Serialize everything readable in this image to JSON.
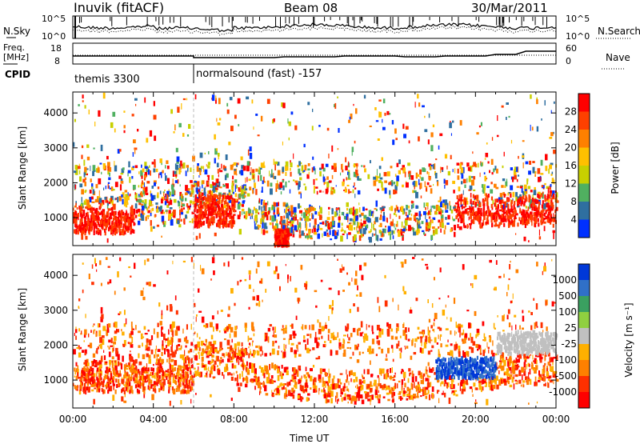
{
  "header": {
    "station": "Inuvik (fitACF)",
    "beam": "Beam 08",
    "date": "30/Mar/2011"
  },
  "top_panels": {
    "nsky_label": "N.Sky",
    "nsky_ticks": [
      "10^5",
      "10^0"
    ],
    "nsearch_label": "N.Search",
    "nsearch_ticks": [
      "10^5",
      "10^0"
    ],
    "freq_label_1": "Freq.",
    "freq_label_2": "[MHz]",
    "freq_ticks": [
      "18",
      "8"
    ],
    "nave_label": "Nave",
    "nave_ticks": [
      "60",
      "0"
    ],
    "cpid_label": "CPID",
    "cpid_segments": [
      {
        "label": "themis 3300",
        "start_hour": 0
      },
      {
        "label": "normalsound (fast) -157",
        "start_hour": 6
      }
    ]
  },
  "chart_data": [
    {
      "type": "heatmap",
      "title": "",
      "xlabel": "Time UT",
      "ylabel": "Slant Range [km]",
      "xlim_hours": [
        0,
        24
      ],
      "ylim": [
        200,
        4600
      ],
      "y_ticks": [
        1000,
        2000,
        3000,
        4000
      ],
      "colorbar_label": "Power [dB]",
      "colorbar_ticks": [
        "28",
        "24",
        "20",
        "16",
        "12",
        "8",
        "4"
      ],
      "colors": [
        "#ff0000",
        "#ff4000",
        "#ff8000",
        "#ffc000",
        "#c8d000",
        "#50b060",
        "#2f6fa0",
        "#0030ff"
      ],
      "bands": [
        {
          "start_hour": 0,
          "end_hour": 3,
          "lower_km": 600,
          "upper_km": 1200,
          "value": "strong"
        },
        {
          "start_hour": 6,
          "end_hour": 8,
          "lower_km": 800,
          "upper_km": 1700,
          "value": "strong"
        },
        {
          "start_hour": 10,
          "end_hour": 10.7,
          "lower_km": 250,
          "upper_km": 700,
          "value": "strong"
        },
        {
          "start_hour": 19,
          "end_hour": 24,
          "lower_km": 800,
          "upper_km": 1700,
          "value": "strong"
        }
      ]
    },
    {
      "type": "heatmap",
      "title": "",
      "xlabel": "Time UT",
      "ylabel": "Slant Range [km]",
      "xlim_hours": [
        0,
        24
      ],
      "ylim": [
        200,
        4600
      ],
      "y_ticks": [
        1000,
        2000,
        3000,
        4000
      ],
      "colorbar_label": "Velocity [m s⁻¹]",
      "colorbar_ticks": [
        "1000",
        "500",
        "100",
        "25",
        "-25",
        "-100",
        "-500",
        "-1000"
      ],
      "colors": [
        "#0038d8",
        "#3070c8",
        "#3aa060",
        "#90d040",
        "#c0c0c0",
        "#ffb000",
        "#ff8000",
        "#ff3000",
        "#ff0000"
      ],
      "bands": [
        {
          "start_hour": 0,
          "end_hour": 6,
          "lower_km": 700,
          "upper_km": 1400,
          "value": "negative"
        },
        {
          "start_hour": 18,
          "end_hour": 21,
          "lower_km": 1100,
          "upper_km": 1700,
          "value": "positive"
        },
        {
          "start_hour": 21,
          "end_hour": 24,
          "lower_km": 1800,
          "upper_km": 2400,
          "value": "near-zero"
        }
      ]
    }
  ],
  "x_ticks": [
    "00:00",
    "04:00",
    "08:00",
    "12:00",
    "16:00",
    "20:00",
    "00:00"
  ]
}
